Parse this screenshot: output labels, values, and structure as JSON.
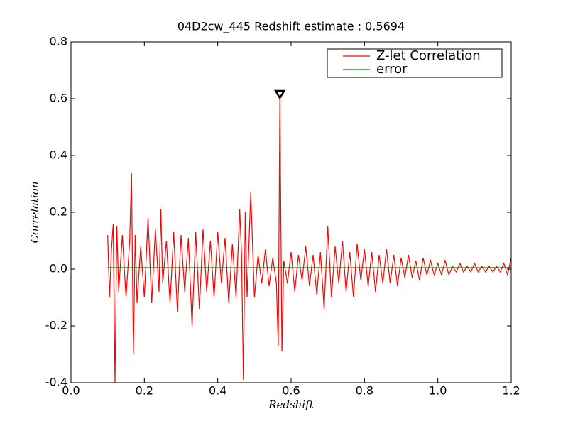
{
  "chart_data": {
    "type": "line",
    "title": "04D2cw_445 Redshift estimate : 0.5694",
    "xlabel": "Redshift",
    "ylabel": "Correlation",
    "xlim": [
      0,
      1.2
    ],
    "ylim": [
      -0.4,
      0.8
    ],
    "xticks": [
      {
        "value": 0,
        "label": "0.0"
      },
      0.2,
      0.4,
      0.6,
      0.8,
      {
        "value": 1,
        "label": "1.0"
      },
      1.2
    ],
    "yticks": [
      -0.4,
      -0.2,
      {
        "value": 0,
        "label": "0.0"
      },
      0.2,
      0.4,
      0.6,
      0.8
    ],
    "legend": "upper right",
    "peak": {
      "x": 0.5694,
      "y": 0.6
    },
    "series": [
      {
        "name": "Z-let Correlation",
        "color": "#ff0000",
        "x": [
          0.1,
          0.105,
          0.11,
          0.115,
          0.12,
          0.125,
          0.13,
          0.14,
          0.15,
          0.16,
          0.165,
          0.17,
          0.175,
          0.18,
          0.19,
          0.2,
          0.21,
          0.22,
          0.23,
          0.24,
          0.245,
          0.25,
          0.26,
          0.27,
          0.28,
          0.29,
          0.3,
          0.31,
          0.32,
          0.33,
          0.34,
          0.35,
          0.36,
          0.37,
          0.38,
          0.39,
          0.4,
          0.41,
          0.42,
          0.43,
          0.44,
          0.45,
          0.46,
          0.465,
          0.47,
          0.475,
          0.48,
          0.49,
          0.5,
          0.51,
          0.52,
          0.53,
          0.54,
          0.55,
          0.56,
          0.565,
          0.5694,
          0.575,
          0.58,
          0.59,
          0.6,
          0.61,
          0.62,
          0.63,
          0.64,
          0.65,
          0.66,
          0.67,
          0.68,
          0.69,
          0.7,
          0.71,
          0.72,
          0.73,
          0.74,
          0.75,
          0.76,
          0.77,
          0.78,
          0.79,
          0.8,
          0.81,
          0.82,
          0.83,
          0.84,
          0.85,
          0.86,
          0.87,
          0.88,
          0.89,
          0.9,
          0.91,
          0.92,
          0.93,
          0.94,
          0.95,
          0.96,
          0.97,
          0.98,
          0.99,
          1.0,
          1.01,
          1.02,
          1.03,
          1.04,
          1.05,
          1.06,
          1.07,
          1.08,
          1.09,
          1.1,
          1.11,
          1.12,
          1.13,
          1.14,
          1.15,
          1.16,
          1.17,
          1.18,
          1.19,
          1.2
        ],
        "values": [
          0.12,
          -0.1,
          0.06,
          0.16,
          -0.4,
          0.15,
          -0.08,
          0.12,
          -0.1,
          0.1,
          0.34,
          -0.3,
          0.12,
          -0.12,
          0.08,
          -0.1,
          0.18,
          -0.12,
          0.14,
          -0.08,
          0.21,
          -0.05,
          0.1,
          -0.12,
          0.13,
          -0.15,
          0.12,
          -0.08,
          0.11,
          -0.2,
          0.13,
          -0.14,
          0.14,
          -0.08,
          0.1,
          -0.1,
          0.13,
          -0.05,
          0.11,
          -0.12,
          0.09,
          -0.1,
          0.21,
          0.05,
          -0.39,
          0.2,
          -0.1,
          0.27,
          -0.1,
          0.05,
          -0.05,
          0.07,
          -0.06,
          0.04,
          -0.05,
          -0.27,
          0.6,
          -0.29,
          0.03,
          -0.05,
          0.06,
          -0.08,
          0.05,
          -0.04,
          0.08,
          -0.06,
          0.05,
          -0.09,
          0.06,
          -0.14,
          0.15,
          -0.1,
          0.08,
          -0.05,
          0.1,
          -0.08,
          0.06,
          -0.1,
          0.09,
          -0.04,
          0.07,
          -0.06,
          0.06,
          -0.08,
          0.05,
          -0.05,
          0.07,
          -0.05,
          0.05,
          -0.06,
          0.04,
          -0.03,
          0.05,
          -0.03,
          0.03,
          -0.04,
          0.04,
          -0.02,
          0.03,
          -0.02,
          0.02,
          -0.02,
          0.03,
          -0.02,
          0.01,
          -0.01,
          0.02,
          -0.01,
          0.01,
          -0.01,
          0.02,
          -0.01,
          0.01,
          -0.01,
          0.01,
          -0.01,
          0.01,
          -0.01,
          0.02,
          -0.02,
          0.04
        ]
      },
      {
        "name": "error",
        "color": "#008000",
        "x": [
          0.1,
          1.2
        ],
        "values": [
          0.005,
          0.005
        ]
      }
    ]
  }
}
